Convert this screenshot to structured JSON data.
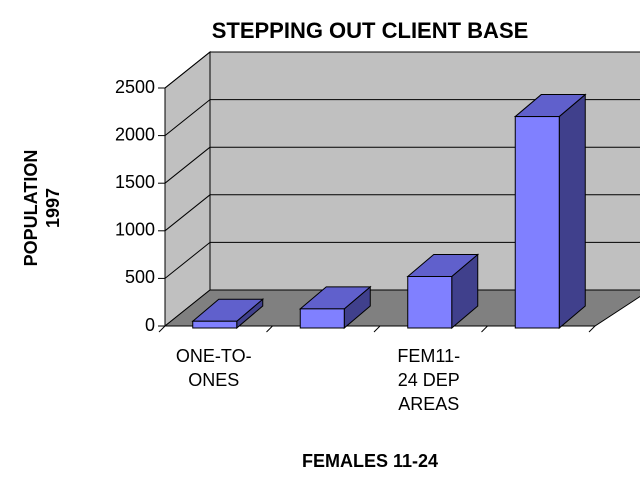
{
  "chart_data": {
    "type": "bar3d",
    "title": "STEPPING OUT CLIENT BASE",
    "y_label": "POPULATION 1997",
    "x_label": "FEMALES 11-24",
    "categories": [
      "ONE-TO-ONES",
      null,
      "FEM11-24 DEP AREAS",
      null
    ],
    "values": [
      50,
      180,
      520,
      2200
    ],
    "color": "#8080ff",
    "ylim": [
      0,
      2500
    ],
    "yticks": [
      0,
      500,
      1000,
      1500,
      2000,
      2500
    ],
    "grid": true
  }
}
